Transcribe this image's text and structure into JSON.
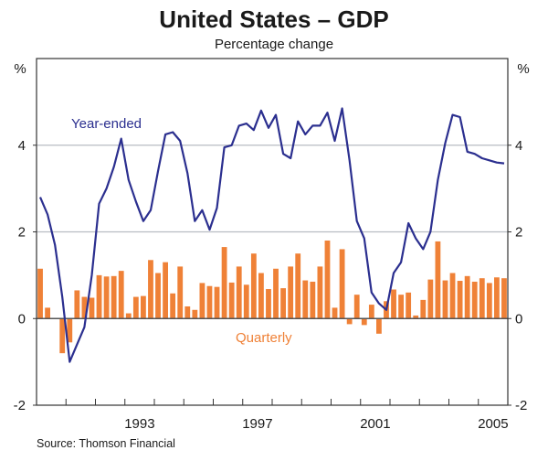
{
  "chart_data": {
    "type": "bar+line",
    "title": "United States – GDP",
    "subtitle": "Percentage change",
    "ylabel_left": "%",
    "ylabel_right": "%",
    "ylim": [
      -2,
      6
    ],
    "yticks": [
      -2,
      0,
      2,
      4
    ],
    "ytick_labels": [
      "-2",
      "0",
      "2",
      "4"
    ],
    "x_start": "1990Q1",
    "x_end": "2005Q4",
    "xtick_labels": [
      "1993",
      "1997",
      "2001",
      "2005"
    ],
    "xtick_label_years": [
      1993,
      1997,
      2001,
      2005
    ],
    "first_year": 1990,
    "years_span": 16,
    "grid": true,
    "source": "Source: Thomson Financial",
    "series": [
      {
        "name": "Quarterly",
        "type": "bar",
        "color": "#ef8137",
        "values": [
          1.15,
          0.25,
          0.0,
          -0.8,
          -0.55,
          0.65,
          0.5,
          0.48,
          1.0,
          0.97,
          0.98,
          1.1,
          0.12,
          0.5,
          0.52,
          1.35,
          1.05,
          1.3,
          0.58,
          1.2,
          0.28,
          0.2,
          0.82,
          0.75,
          0.73,
          1.65,
          0.83,
          1.2,
          0.78,
          1.5,
          1.05,
          0.68,
          1.15,
          0.7,
          1.2,
          1.5,
          0.88,
          0.85,
          1.2,
          1.8,
          0.25,
          1.6,
          -0.13,
          0.55,
          -0.15,
          0.32,
          -0.35,
          0.4,
          0.67,
          0.55,
          0.6,
          0.07,
          0.43,
          0.9,
          1.78,
          0.88,
          1.05,
          0.87,
          0.98,
          0.85,
          0.93,
          0.82,
          0.95,
          0.93
        ]
      },
      {
        "name": "Year-ended",
        "type": "line",
        "color": "#2b2f8f",
        "values": [
          2.8,
          2.4,
          1.7,
          0.5,
          -1.0,
          -0.6,
          -0.2,
          1.0,
          2.65,
          3.0,
          3.5,
          4.15,
          3.2,
          2.7,
          2.25,
          2.5,
          3.4,
          4.25,
          4.3,
          4.1,
          3.35,
          2.25,
          2.5,
          2.05,
          2.55,
          3.95,
          4.0,
          4.45,
          4.5,
          4.35,
          4.8,
          4.4,
          4.7,
          3.8,
          3.7,
          4.55,
          4.25,
          4.45,
          4.45,
          4.75,
          4.1,
          4.85,
          3.65,
          2.25,
          1.85,
          0.6,
          0.35,
          0.2,
          1.05,
          1.3,
          2.2,
          1.85,
          1.6,
          2.0,
          3.2,
          4.05,
          4.7,
          4.65,
          3.85,
          3.8,
          3.7,
          3.65,
          3.6,
          3.58
        ]
      }
    ],
    "annotations": [
      {
        "text": "Year-ended",
        "series": "Year-ended"
      },
      {
        "text": "Quarterly",
        "series": "Quarterly"
      }
    ]
  }
}
